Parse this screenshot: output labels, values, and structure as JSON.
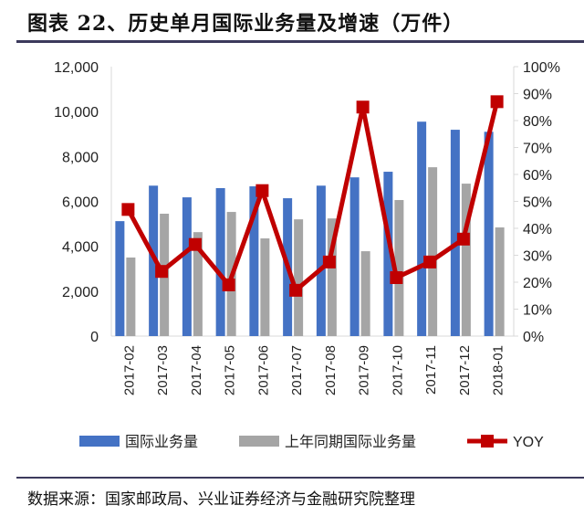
{
  "title": "图表 22、历史单月国际业务量及增速（万件）",
  "source": "数据来源：国家邮政局、兴业证券经济与金融研究院整理",
  "chart_data": {
    "type": "bar",
    "categories": [
      "2017-02",
      "2017-03",
      "2017-04",
      "2017-05",
      "2017-06",
      "2017-07",
      "2017-08",
      "2017-09",
      "2017-10",
      "2017-11",
      "2017-12",
      "2018-01"
    ],
    "series": [
      {
        "name": "国际业务量",
        "type": "bar",
        "axis": "left",
        "color": "#4472c4",
        "values": [
          5120,
          6700,
          6180,
          6590,
          6670,
          6140,
          6700,
          7070,
          7320,
          9550,
          9190,
          9100
        ]
      },
      {
        "name": "上年同期国际业务量",
        "type": "bar",
        "axis": "left",
        "color": "#a5a5a5",
        "values": [
          3500,
          5450,
          4630,
          5530,
          4350,
          5200,
          5240,
          3780,
          6060,
          7520,
          6790,
          4840
        ]
      },
      {
        "name": "YOY",
        "type": "line",
        "axis": "right",
        "color": "#c00000",
        "values": [
          0.47,
          0.24,
          0.34,
          0.19,
          0.54,
          0.17,
          0.275,
          0.85,
          0.217,
          0.275,
          0.36,
          0.87
        ]
      }
    ],
    "y_left": {
      "range": [
        0,
        12000
      ],
      "ticks": [
        "0",
        "2,000",
        "4,000",
        "6,000",
        "8,000",
        "10,000",
        "12,000"
      ]
    },
    "y_right": {
      "range": [
        0,
        1
      ],
      "ticks": [
        "0%",
        "10%",
        "20%",
        "30%",
        "40%",
        "50%",
        "60%",
        "70%",
        "80%",
        "90%",
        "100%"
      ]
    },
    "legend": "bottom",
    "grid": false
  }
}
